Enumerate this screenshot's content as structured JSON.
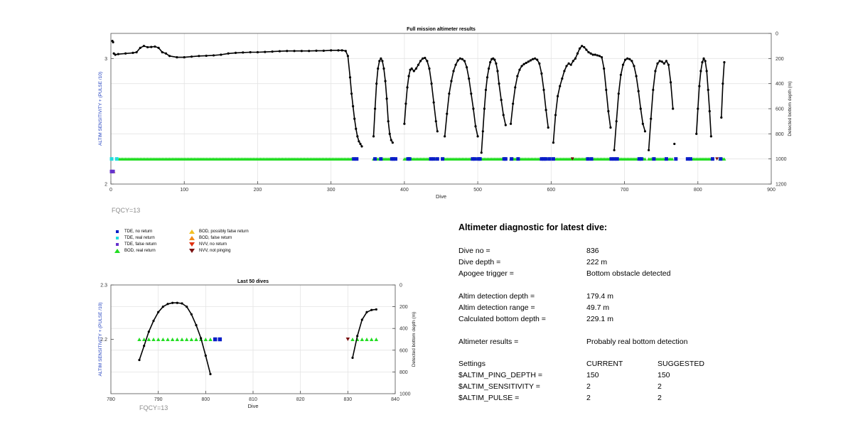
{
  "chart_data": [
    {
      "type": "line",
      "title": "Full mission altimeter results",
      "xlabel": "Dive",
      "ylabel_left": "ALTIM SENSITIVITY + (PULSE /10)",
      "ylabel_right": "Detected bottom depth (m)",
      "xlim": [
        0,
        900
      ],
      "ylim_left": [
        2,
        3.2
      ],
      "ylim_right": [
        0,
        1200
      ],
      "xticks": [
        "0",
        "100",
        "200",
        "300",
        "400",
        "500",
        "600",
        "700",
        "800",
        "900"
      ],
      "yticks_left": [
        "2",
        "3"
      ],
      "yticks_right": [
        "0",
        "200",
        "400",
        "600",
        "800",
        "1000",
        "1200"
      ],
      "grid": true,
      "series": [
        {
          "name": "Detected bottom depth",
          "color": "#000000",
          "segments": [
            {
              "x": [
                4,
                6,
                10,
                20,
                30,
                35,
                40,
                45,
                50,
                55,
                60,
                65,
                70,
                75,
                80,
                90,
                100,
                110,
                120,
                130,
                140,
                150,
                160,
                170,
                180,
                190,
                200,
                210,
                220,
                230,
                240,
                250,
                260,
                270,
                280,
                290,
                300,
                310,
                315,
                320,
                323,
                326,
                328,
                330,
                332,
                334,
                336,
                338,
                340,
                342
              ],
              "y": [
                160,
                170,
                165,
                160,
                155,
                150,
                115,
                100,
                110,
                108,
                105,
                115,
                150,
                160,
                180,
                190,
                190,
                185,
                180,
                178,
                175,
                170,
                160,
                155,
                152,
                150,
                150,
                148,
                145,
                142,
                140,
                140,
                140,
                140,
                138,
                138,
                135,
                135,
                135,
                140,
                180,
                350,
                480,
                580,
                680,
                760,
                820,
                860,
                880,
                900
              ]
            },
            {
              "x": [
                358,
                360,
                362,
                364,
                366,
                368,
                370,
                372,
                374,
                376,
                378,
                380,
                382,
                384
              ],
              "y": [
                820,
                600,
                400,
                280,
                220,
                200,
                220,
                280,
                380,
                520,
                700,
                800,
                850,
                870
              ]
            },
            {
              "x": [
                400,
                402,
                404,
                406,
                408,
                410,
                413,
                416,
                419,
                422,
                425,
                428,
                431,
                434,
                437,
                440,
                443,
                445
              ],
              "y": [
                720,
                560,
                430,
                340,
                290,
                280,
                300,
                280,
                250,
                220,
                200,
                195,
                220,
                280,
                400,
                550,
                700,
                780
              ]
            },
            {
              "x": [
                455,
                458,
                461,
                464,
                467,
                470,
                473,
                476,
                479,
                482,
                485,
                488,
                491,
                494,
                497,
                500
              ],
              "y": [
                820,
                640,
                480,
                380,
                300,
                250,
                215,
                200,
                205,
                220,
                270,
                360,
                480,
                600,
                740,
                820
              ]
            },
            {
              "x": [
                505,
                507,
                509,
                511,
                513,
                515,
                517,
                519,
                521,
                523,
                525,
                527,
                529,
                532,
                535,
                538
              ],
              "y": [
                950,
                780,
                600,
                450,
                350,
                280,
                230,
                205,
                200,
                210,
                240,
                300,
                400,
                530,
                650,
                730
              ]
            },
            {
              "x": [
                545,
                548,
                551,
                554,
                557,
                560,
                563,
                566,
                569,
                572,
                575,
                578,
                581,
                584,
                587,
                590,
                593,
                596
              ],
              "y": [
                720,
                560,
                430,
                340,
                290,
                260,
                245,
                235,
                225,
                215,
                205,
                200,
                210,
                240,
                320,
                450,
                610,
                750
              ]
            },
            {
              "x": [
                603,
                606,
                609,
                612,
                615,
                618,
                621,
                624,
                627,
                630,
                633,
                636,
                639,
                642,
                645,
                648,
                651,
                654,
                657,
                660,
                663,
                666,
                669,
                672,
                675,
                678,
                681
              ],
              "y": [
                870,
                650,
                500,
                420,
                360,
                300,
                260,
                240,
                250,
                220,
                200,
                160,
                120,
                100,
                110,
                130,
                150,
                160,
                170,
                170,
                175,
                180,
                190,
                280,
                450,
                620,
                750
              ]
            },
            {
              "x": [
                686,
                689,
                692,
                695,
                698,
                701,
                704,
                707,
                710,
                713,
                716,
                719,
                722,
                725,
                728
              ],
              "y": [
                930,
                700,
                480,
                330,
                250,
                210,
                200,
                205,
                220,
                260,
                340,
                460,
                600,
                720,
                780
              ]
            },
            {
              "x": [
                733,
                736,
                739,
                742,
                745,
                748,
                751,
                754,
                757,
                760,
                763,
                766
              ],
              "y": [
                930,
                680,
                450,
                300,
                240,
                220,
                225,
                240,
                220,
                250,
                390,
                600
              ]
            },
            {
              "x": [
                768
              ],
              "y": [
                880
              ]
            },
            {
              "x": [
                798,
                800,
                802,
                804,
                806,
                808,
                810,
                812,
                814,
                816,
                818
              ],
              "y": [
                800,
                600,
                420,
                300,
                230,
                200,
                220,
                300,
                450,
                620,
                820
              ]
            },
            {
              "x": [
                832,
                834,
                836
              ],
              "y": [
                670,
                400,
                230
              ]
            },
            {
              "x": [
                2,
                3
              ],
              "y": [
                60,
                70
              ]
            }
          ]
        },
        {
          "name": "BOD, real return",
          "color": "#22dd22",
          "marker": "triangle",
          "y": 2.2,
          "ranges": [
            [
              10,
              330
            ],
            [
              358,
              384
            ],
            [
              400,
              445
            ],
            [
              455,
              500
            ],
            [
              505,
              538
            ],
            [
              545,
              596
            ],
            [
              603,
              681
            ],
            [
              686,
              728
            ],
            [
              733,
              766
            ],
            [
              790,
              818
            ],
            [
              830,
              836
            ]
          ]
        },
        {
          "name": "TDE, no return",
          "color": "#0a1ec8",
          "marker": "square",
          "y": 2.2,
          "x": [
            331,
            335,
            360,
            368,
            383,
            385,
            388,
            405,
            407,
            436,
            440,
            445,
            452,
            493,
            496,
            501,
            503,
            536,
            538,
            546,
            555,
            587,
            590,
            593,
            598,
            603,
            650,
            655,
            682,
            686,
            690,
            720,
            723,
            740,
            757,
            770,
            786,
            790,
            820,
            831
          ]
        },
        {
          "name": "TDE, real return",
          "color": "#22dddd",
          "marker": "square",
          "y": 2.2,
          "x": [
            8,
            1
          ]
        },
        {
          "name": "BOD, possibly false return",
          "color": "#f2c022",
          "marker": "triangle",
          "y": 2.1,
          "x": [
            4
          ]
        },
        {
          "name": "NVV, not pinging",
          "color": "#7a1010",
          "marker": "triangle-down",
          "y": 2.2,
          "x": [
            629,
            826
          ]
        },
        {
          "name": "TDE, false return",
          "color": "#6633cc",
          "marker": "square",
          "y": 2.1,
          "x": [
            1,
            3
          ]
        }
      ],
      "annotation": "FQCY=13"
    },
    {
      "type": "line",
      "title": "Last 50 dives",
      "xlabel": "Dive",
      "ylabel_left": "ALTIM SENSITIVITY + (PULSE /10)",
      "ylabel_right": "Detected bottom depth (m)",
      "xlim": [
        780,
        840
      ],
      "ylim_left": [
        2.1,
        2.3
      ],
      "ylim_right": [
        0,
        1000
      ],
      "xticks": [
        "780",
        "790",
        "800",
        "810",
        "820",
        "830",
        "840"
      ],
      "yticks_left": [
        "2.3",
        "2.2"
      ],
      "yticks_right": [
        "0",
        "200",
        "400",
        "600",
        "800",
        "1000"
      ],
      "grid": true,
      "series": [
        {
          "name": "Detected bottom depth",
          "color": "#000000",
          "segments": [
            {
              "x": [
                786,
                787,
                788,
                789,
                790,
                791,
                792,
                793,
                794,
                795,
                796,
                797,
                798,
                799,
                800,
                801
              ],
              "y": [
                690,
                560,
                430,
                330,
                250,
                200,
                175,
                165,
                165,
                170,
                200,
                270,
                370,
                490,
                650,
                820
              ]
            },
            {
              "x": [
                831,
                832,
                833,
                834,
                835,
                836
              ],
              "y": [
                670,
                470,
                320,
                250,
                230,
                225
              ]
            }
          ]
        },
        {
          "name": "BOD, real return",
          "color": "#22dd22",
          "marker": "triangle",
          "y": 2.2,
          "x": [
            786,
            787,
            788,
            789,
            790,
            791,
            792,
            793,
            794,
            795,
            796,
            797,
            798,
            799,
            800,
            801,
            831,
            832,
            833,
            834,
            835,
            836
          ]
        },
        {
          "name": "TDE, no return",
          "color": "#0a1ec8",
          "marker": "square",
          "y": 2.2,
          "x": [
            802,
            803
          ]
        },
        {
          "name": "NVV, not pinging",
          "color": "#7a1010",
          "marker": "triangle-down",
          "y": 2.2,
          "x": [
            830
          ]
        }
      ],
      "annotation": "FQCY=13"
    }
  ],
  "legend": {
    "items": [
      {
        "label": "TDE, no return",
        "color": "#0a1ec8",
        "marker": "square"
      },
      {
        "label": "TDE, real return",
        "color": "#22dddd",
        "marker": "square"
      },
      {
        "label": "TDE, false return",
        "color": "#6633cc",
        "marker": "square"
      },
      {
        "label": "BOD, real return",
        "color": "#22dd22",
        "marker": "triangle"
      },
      {
        "label": "BOD, possibly false return",
        "color": "#f2c022",
        "marker": "triangle"
      },
      {
        "label": "BOD, false return",
        "color": "#f08a1a",
        "marker": "triangle"
      },
      {
        "label": "NVV, no return",
        "color": "#e03010",
        "marker": "triangle-down"
      },
      {
        "label": "NVV, not pinging",
        "color": "#7a1010",
        "marker": "triangle-down"
      }
    ]
  },
  "diagnostic": {
    "title": "Altimeter diagnostic for latest dive:",
    "rows": [
      {
        "label": "Dive no =",
        "value": "836"
      },
      {
        "label": "Dive depth =",
        "value": "222 m"
      },
      {
        "label": "Apogee trigger =",
        "value": "Bottom obstacle detected"
      },
      {
        "label": "Altim detection depth =",
        "value": "179.4 m"
      },
      {
        "label": "Altim detection range =",
        "value": "49.7 m"
      },
      {
        "label": "Calculated bottom depth =",
        "value": "229.1 m"
      },
      {
        "label": "Altimeter results =",
        "value": "Probably real bottom detection"
      }
    ],
    "settings_header": {
      "label": "Settings",
      "current": "CURRENT",
      "suggested": "SUGGESTED"
    },
    "settings": [
      {
        "label": "$ALTIM_PING_DEPTH =",
        "current": "150",
        "suggested": "150"
      },
      {
        "label": "$ALTIM_SENSITIVITY =",
        "current": "2",
        "suggested": "2"
      },
      {
        "label": "$ALTIM_PULSE =",
        "current": "2",
        "suggested": "2"
      }
    ]
  },
  "colors": {
    "axis_left_label": "#1f3fbf",
    "grid": "#e4e4e4",
    "fqcy": "#8c8c8c"
  }
}
